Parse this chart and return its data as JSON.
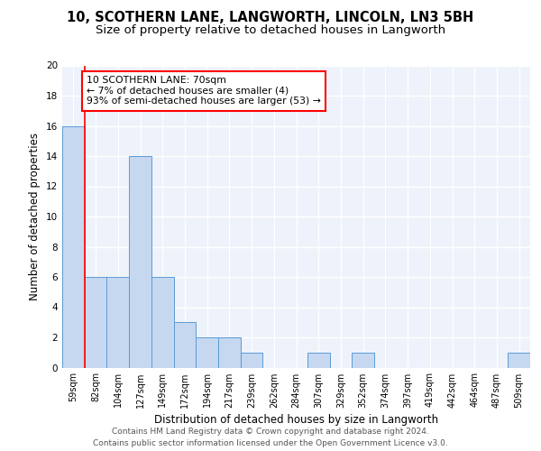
{
  "title_line1": "10, SCOTHERN LANE, LANGWORTH, LINCOLN, LN3 5BH",
  "title_line2": "Size of property relative to detached houses in Langworth",
  "xlabel": "Distribution of detached houses by size in Langworth",
  "ylabel": "Number of detached properties",
  "categories": [
    "59sqm",
    "82sqm",
    "104sqm",
    "127sqm",
    "149sqm",
    "172sqm",
    "194sqm",
    "217sqm",
    "239sqm",
    "262sqm",
    "284sqm",
    "307sqm",
    "329sqm",
    "352sqm",
    "374sqm",
    "397sqm",
    "419sqm",
    "442sqm",
    "464sqm",
    "487sqm",
    "509sqm"
  ],
  "values": [
    16,
    6,
    6,
    14,
    6,
    3,
    2,
    2,
    1,
    0,
    0,
    1,
    0,
    1,
    0,
    0,
    0,
    0,
    0,
    0,
    1
  ],
  "bar_color": "#c5d8f0",
  "bar_edge_color": "#5b9bd5",
  "annotation_title": "10 SCOTHERN LANE: 70sqm",
  "annotation_line1": "← 7% of detached houses are smaller (4)",
  "annotation_line2": "93% of semi-detached houses are larger (53) →",
  "annotation_box_color": "white",
  "annotation_box_edge_color": "red",
  "ylim": [
    0,
    20
  ],
  "yticks": [
    0,
    2,
    4,
    6,
    8,
    10,
    12,
    14,
    16,
    18,
    20
  ],
  "footer_line1": "Contains HM Land Registry data © Crown copyright and database right 2024.",
  "footer_line2": "Contains public sector information licensed under the Open Government Licence v3.0.",
  "bg_color": "#eef3fb",
  "grid_color": "white",
  "title_fontsize": 10.5,
  "subtitle_fontsize": 9.5,
  "axis_label_fontsize": 8.5,
  "tick_fontsize": 7,
  "footer_fontsize": 6.5,
  "annotation_fontsize": 7.8
}
